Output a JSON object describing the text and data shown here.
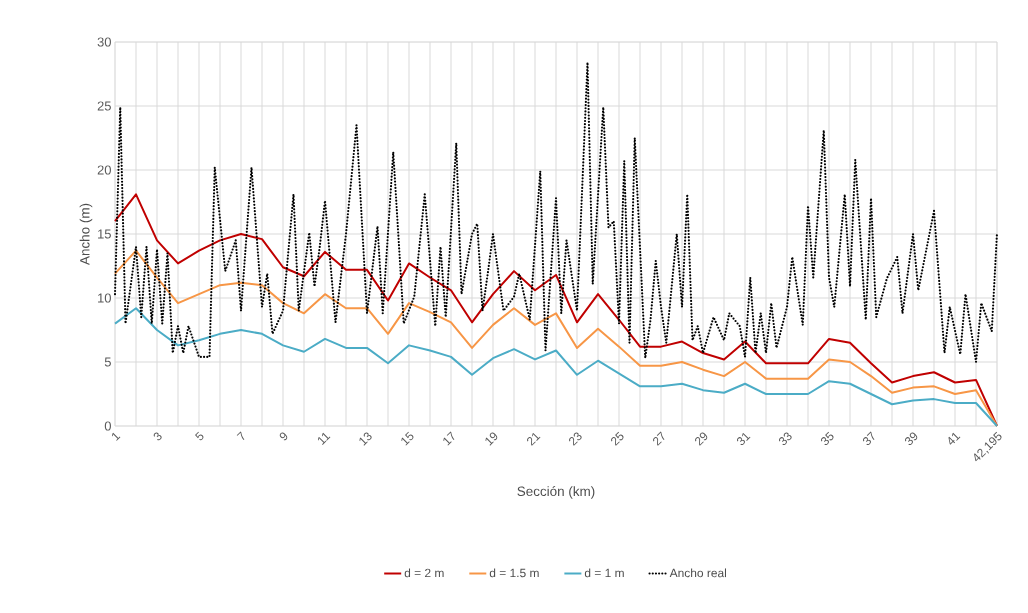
{
  "chart_data": {
    "type": "line",
    "xlabel": "Sección (km)",
    "ylabel": "Ancho (m)",
    "categories": [
      "1",
      null,
      null,
      null,
      null,
      null,
      null,
      null,
      "3",
      null,
      null,
      null,
      null,
      null,
      null,
      null,
      "5",
      null,
      null,
      null,
      null,
      null,
      null,
      null,
      "7",
      null,
      null,
      null,
      null,
      null,
      null,
      null,
      "9",
      null,
      null,
      null,
      null,
      null,
      null,
      null,
      "11",
      null,
      null,
      null,
      null,
      null,
      null,
      null,
      "13",
      null,
      null,
      null,
      null,
      null,
      null,
      null,
      "15",
      null,
      null,
      null,
      null,
      null,
      null,
      null,
      "17",
      null,
      null,
      null,
      null,
      null,
      null,
      null,
      "19",
      null,
      null,
      null,
      null,
      null,
      null,
      null,
      "21",
      null,
      null,
      null,
      null,
      null,
      null,
      null,
      "23",
      null,
      null,
      null,
      null,
      null,
      null,
      null,
      "25",
      null,
      null,
      null,
      null,
      null,
      null,
      null,
      "27",
      null,
      null,
      null,
      null,
      null,
      null,
      null,
      "29",
      null,
      null,
      null,
      null,
      null,
      null,
      null,
      "31",
      null,
      null,
      null,
      null,
      null,
      null,
      null,
      "33",
      null,
      null,
      null,
      null,
      null,
      null,
      null,
      "35",
      null,
      null,
      null,
      null,
      null,
      null,
      null,
      "37",
      null,
      null,
      null,
      null,
      null,
      null,
      null,
      "39",
      null,
      null,
      null,
      null,
      null,
      null,
      null,
      "41",
      null,
      null,
      null,
      null,
      null,
      null,
      null,
      "42,195"
    ],
    "ylim": [
      0,
      30
    ],
    "yticks": [
      0,
      5,
      10,
      15,
      20,
      25,
      30
    ],
    "grid": true,
    "legend": "bottom",
    "series": [
      {
        "name": "d = 2 m",
        "color": "#c00000",
        "line_style": "solid",
        "values": [
          16.0,
          null,
          null,
          null,
          18.1,
          null,
          null,
          null,
          14.5,
          null,
          null,
          null,
          12.7,
          null,
          null,
          null,
          13.7,
          null,
          null,
          null,
          14.5,
          null,
          null,
          null,
          15.0,
          null,
          null,
          null,
          14.6,
          null,
          null,
          null,
          12.4,
          null,
          null,
          null,
          11.7,
          null,
          null,
          null,
          13.6,
          null,
          null,
          null,
          12.2,
          null,
          null,
          null,
          12.2,
          null,
          null,
          null,
          9.8,
          null,
          null,
          null,
          12.7,
          null,
          null,
          null,
          11.6,
          null,
          null,
          null,
          10.6,
          null,
          null,
          null,
          8.1,
          null,
          null,
          null,
          10.3,
          null,
          null,
          null,
          12.1,
          null,
          null,
          null,
          10.6,
          null,
          null,
          null,
          11.8,
          null,
          null,
          null,
          8.1,
          null,
          null,
          null,
          10.3,
          null,
          null,
          null,
          8.3,
          null,
          null,
          null,
          6.2,
          null,
          null,
          null,
          6.2,
          null,
          null,
          null,
          6.6,
          null,
          null,
          null,
          5.7,
          null,
          null,
          null,
          5.2,
          null,
          null,
          null,
          6.6,
          null,
          null,
          null,
          4.9,
          null,
          null,
          null,
          4.9,
          null,
          null,
          null,
          4.9,
          null,
          null,
          null,
          6.8,
          null,
          null,
          null,
          6.5,
          null,
          null,
          null,
          4.9,
          null,
          null,
          null,
          3.4,
          null,
          null,
          null,
          3.9,
          null,
          null,
          null,
          4.2,
          null,
          null,
          null,
          3.4,
          null,
          null,
          null,
          3.6,
          null,
          null,
          null,
          0
        ]
      },
      {
        "name": "d = 1.5 m",
        "color": "#f79646",
        "line_style": "solid",
        "values": [
          11.9,
          null,
          null,
          null,
          13.7,
          null,
          null,
          null,
          11.6,
          null,
          null,
          null,
          9.6,
          null,
          null,
          null,
          10.3,
          null,
          null,
          null,
          11.0,
          null,
          null,
          null,
          11.2,
          null,
          null,
          null,
          11.0,
          null,
          null,
          null,
          9.6,
          null,
          null,
          null,
          8.8,
          null,
          null,
          null,
          10.3,
          null,
          null,
          null,
          9.2,
          null,
          null,
          null,
          9.2,
          null,
          null,
          null,
          7.2,
          null,
          null,
          null,
          9.6,
          null,
          null,
          null,
          8.9,
          null,
          null,
          null,
          8.1,
          null,
          null,
          null,
          6.1,
          null,
          null,
          null,
          7.9,
          null,
          null,
          null,
          9.2,
          null,
          null,
          null,
          7.9,
          null,
          null,
          null,
          8.8,
          null,
          null,
          null,
          6.1,
          null,
          null,
          null,
          7.6,
          null,
          null,
          null,
          6.2,
          null,
          null,
          null,
          4.7,
          null,
          null,
          null,
          4.7,
          null,
          null,
          null,
          5.0,
          null,
          null,
          null,
          4.4,
          null,
          null,
          null,
          3.9,
          null,
          null,
          null,
          5.0,
          null,
          null,
          null,
          3.7,
          null,
          null,
          null,
          3.7,
          null,
          null,
          null,
          3.7,
          null,
          null,
          null,
          5.2,
          null,
          null,
          null,
          5.0,
          null,
          null,
          null,
          3.9,
          null,
          null,
          null,
          2.6,
          null,
          null,
          null,
          3.0,
          null,
          null,
          null,
          3.1,
          null,
          null,
          null,
          2.5,
          null,
          null,
          null,
          2.8,
          null,
          null,
          null,
          0
        ]
      },
      {
        "name": "d = 1 m",
        "color": "#4bacc6",
        "line_style": "solid",
        "values": [
          8.0,
          null,
          null,
          null,
          9.2,
          null,
          null,
          null,
          7.5,
          null,
          null,
          null,
          6.3,
          null,
          null,
          null,
          6.7,
          null,
          null,
          null,
          7.2,
          null,
          null,
          null,
          7.5,
          null,
          null,
          null,
          7.2,
          null,
          null,
          null,
          6.3,
          null,
          null,
          null,
          5.8,
          null,
          null,
          null,
          6.8,
          null,
          null,
          null,
          6.1,
          null,
          null,
          null,
          6.1,
          null,
          null,
          null,
          4.9,
          null,
          null,
          null,
          6.3,
          null,
          null,
          null,
          5.9,
          null,
          null,
          null,
          5.4,
          null,
          null,
          null,
          4.0,
          null,
          null,
          null,
          5.3,
          null,
          null,
          null,
          6.0,
          null,
          null,
          null,
          5.2,
          null,
          null,
          null,
          5.9,
          null,
          null,
          null,
          4.0,
          null,
          null,
          null,
          5.1,
          null,
          null,
          null,
          4.1,
          null,
          null,
          null,
          3.1,
          null,
          null,
          null,
          3.1,
          null,
          null,
          null,
          3.3,
          null,
          null,
          null,
          2.8,
          null,
          null,
          null,
          2.6,
          null,
          null,
          null,
          3.3,
          null,
          null,
          null,
          2.5,
          null,
          null,
          null,
          2.5,
          null,
          null,
          null,
          2.5,
          null,
          null,
          null,
          3.5,
          null,
          null,
          null,
          3.3,
          null,
          null,
          null,
          2.5,
          null,
          null,
          null,
          1.7,
          null,
          null,
          null,
          2.0,
          null,
          null,
          null,
          2.1,
          null,
          null,
          null,
          1.8,
          null,
          null,
          null,
          1.8,
          null,
          null,
          null,
          0
        ]
      },
      {
        "name": "Ancho real",
        "color": "#000000",
        "line_style": "dotted",
        "values": [
          10.3,
          24.9,
          8.0,
          null,
          14.0,
          8.5,
          14.0,
          8.0,
          13.8,
          8.0,
          13.5,
          5.7,
          7.8,
          5.7,
          7.8,
          null,
          5.4,
          null,
          5.4,
          20.2,
          null,
          12.1,
          null,
          14.5,
          9.0,
          null,
          20.2,
          null,
          9.3,
          11.9,
          7.2,
          null,
          9.0,
          null,
          18.1,
          9.0,
          null,
          15.1,
          10.9,
          14.0,
          17.6,
          null,
          8.1,
          null,
          15.0,
          null,
          23.5,
          null,
          8.8,
          null,
          15.6,
          8.8,
          null,
          21.4,
          null,
          8.0,
          null,
          10.1,
          null,
          18.1,
          null,
          7.8,
          14.0,
          8.5,
          null,
          22.1,
          10.3,
          null,
          15.0,
          15.8,
          9.0,
          11.9,
          15.0,
          null,
          9.0,
          null,
          10.1,
          11.9,
          null,
          8.3,
          null,
          19.9,
          5.9,
          null,
          17.8,
          8.8,
          14.5,
          null,
          9.0,
          null,
          28.4,
          11.1,
          null,
          24.9,
          15.5,
          16.0,
          8.0,
          20.7,
          6.5,
          22.5,
          null,
          5.3,
          8.3,
          12.9,
          9.3,
          6.5,
          null,
          15.0,
          9.3,
          18.1,
          6.7,
          7.8,
          5.7,
          null,
          8.5,
          null,
          6.7,
          8.8,
          null,
          7.8,
          5.4,
          11.6,
          5.7,
          8.8,
          5.7,
          9.6,
          6.1,
          null,
          9.3,
          13.2,
          null,
          7.9,
          17.2,
          11.6,
          null,
          23.1,
          11.6,
          9.3,
          null,
          18.1,
          10.9,
          20.8,
          null,
          8.3,
          17.8,
          8.5,
          null,
          11.5,
          null,
          13.2,
          8.8,
          null,
          15.0,
          10.6,
          null,
          null,
          16.8,
          null,
          5.7,
          9.3,
          null,
          5.6,
          10.3,
          null,
          5.0,
          9.6,
          null,
          7.4,
          15.1
        ]
      }
    ]
  }
}
